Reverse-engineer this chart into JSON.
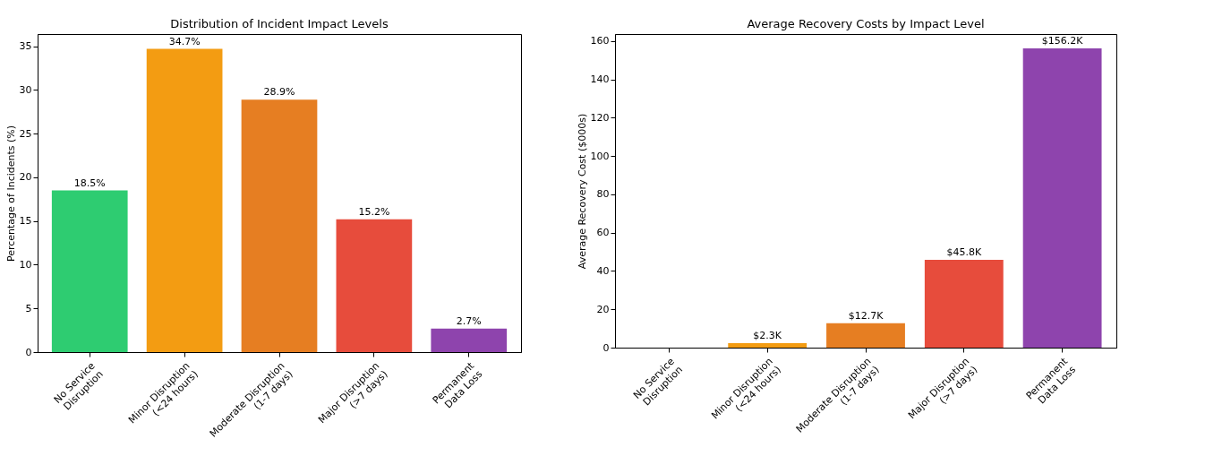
{
  "chart_data": [
    {
      "type": "bar",
      "title": "Distribution of Incident Impact Levels",
      "ylabel": "Percentage of Incidents (%)",
      "categories": [
        "No Service\nDisruption",
        "Minor Disruption\n(<24 hours)",
        "Moderate Disruption\n(1-7 days)",
        "Major Disruption\n(>7 days)",
        "Permanent\nData Loss"
      ],
      "values": [
        18.5,
        34.7,
        28.9,
        15.2,
        2.7
      ],
      "colors": [
        "#2ecc71",
        "#f39c12",
        "#e67e22",
        "#e74c3c",
        "#8e44ad"
      ],
      "value_labels": [
        "18.5%",
        "34.7%",
        "28.9%",
        "15.2%",
        "2.7%"
      ],
      "ylim": [
        0,
        36.4
      ],
      "yticks": [
        0,
        5,
        10,
        15,
        20,
        25,
        30,
        35
      ]
    },
    {
      "type": "bar",
      "title": "Average Recovery Costs by Impact Level",
      "ylabel": "Average Recovery Cost ($000s)",
      "categories": [
        "No Service\nDisruption",
        "Minor Disruption\n(<24 hours)",
        "Moderate Disruption\n(1-7 days)",
        "Major Disruption\n(>7 days)",
        "Permanent\nData Loss"
      ],
      "values": [
        0,
        2.3,
        12.7,
        45.8,
        156.2
      ],
      "colors": [
        "#2ecc71",
        "#f39c12",
        "#e67e22",
        "#e74c3c",
        "#8e44ad"
      ],
      "value_labels": [
        null,
        "$2.3K",
        "$12.7K",
        "$45.8K",
        "$156.2K"
      ],
      "ylim": [
        0,
        163.7
      ],
      "yticks": [
        0,
        20,
        40,
        60,
        80,
        100,
        120,
        140,
        160
      ]
    }
  ]
}
